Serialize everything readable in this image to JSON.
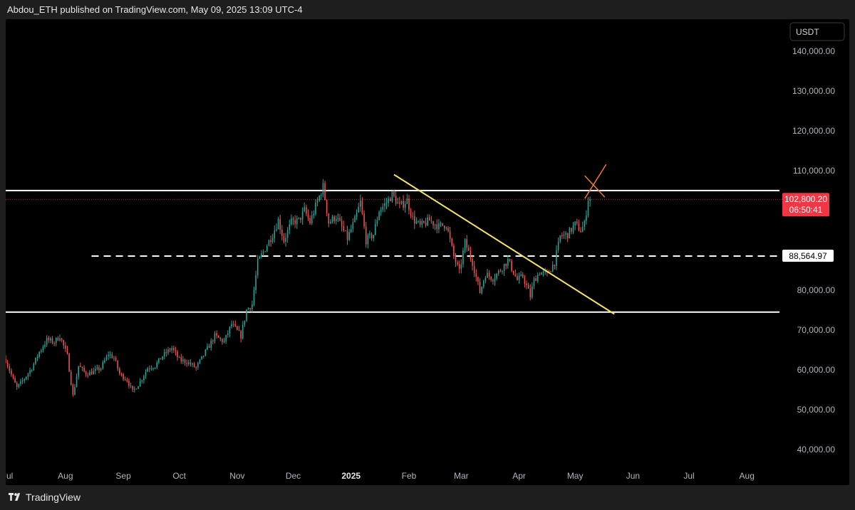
{
  "header": {
    "attribution": "Abdou_ETH published on TradingView.com, May 09, 2025 13:09 UTC-4"
  },
  "footer": {
    "brand": "TradingView"
  },
  "colors": {
    "up": "#26a69a",
    "down": "#ef5350",
    "background": "#000000",
    "trendline": "#f5e36a",
    "marker": "#f07a3a",
    "price_badge": "#f23645"
  },
  "chart_data": {
    "type": "candlestick",
    "currency_label": "USDT",
    "ylim": [
      35000,
      148000
    ],
    "y_ticks": [
      40000,
      50000,
      60000,
      70000,
      80000,
      90000,
      100000,
      110000,
      120000,
      130000,
      140000
    ],
    "y_tick_labels": [
      "40,000.00",
      "50,000.00",
      "60,000.00",
      "70,000.00",
      "80,000.00",
      "",
      "",
      "110,000.00",
      "120,000.00",
      "130,000.00",
      "140,000.00"
    ],
    "x_range": [
      "2024-06-30",
      "2025-08-20"
    ],
    "x_ticks": [
      {
        "label": "Jul",
        "date": "2024-07-01",
        "bold": false
      },
      {
        "label": "Aug",
        "date": "2024-08-01",
        "bold": false
      },
      {
        "label": "Sep",
        "date": "2024-09-01",
        "bold": false
      },
      {
        "label": "Oct",
        "date": "2024-10-01",
        "bold": false
      },
      {
        "label": "Nov",
        "date": "2024-11-01",
        "bold": false
      },
      {
        "label": "Dec",
        "date": "2024-12-01",
        "bold": false
      },
      {
        "label": "2025",
        "date": "2025-01-01",
        "bold": true
      },
      {
        "label": "Feb",
        "date": "2025-02-01",
        "bold": false
      },
      {
        "label": "Mar",
        "date": "2025-03-01",
        "bold": false
      },
      {
        "label": "Apr",
        "date": "2025-04-01",
        "bold": false
      },
      {
        "label": "May",
        "date": "2025-05-01",
        "bold": false
      },
      {
        "label": "Jun",
        "date": "2025-06-01",
        "bold": false
      },
      {
        "label": "Jul",
        "date": "2025-07-01",
        "bold": false
      },
      {
        "label": "Aug",
        "date": "2025-08-01",
        "bold": false
      }
    ],
    "price_path": [
      [
        "2024-06-30",
        62500
      ],
      [
        "2024-07-04",
        57500
      ],
      [
        "2024-07-06",
        55500
      ],
      [
        "2024-07-10",
        57800
      ],
      [
        "2024-07-14",
        60500
      ],
      [
        "2024-07-18",
        64500
      ],
      [
        "2024-07-22",
        67500
      ],
      [
        "2024-07-26",
        67000
      ],
      [
        "2024-07-29",
        68500
      ],
      [
        "2024-08-02",
        63500
      ],
      [
        "2024-08-05",
        53500
      ],
      [
        "2024-08-08",
        61000
      ],
      [
        "2024-08-12",
        59000
      ],
      [
        "2024-08-16",
        59500
      ],
      [
        "2024-08-20",
        60500
      ],
      [
        "2024-08-24",
        64000
      ],
      [
        "2024-08-27",
        63000
      ],
      [
        "2024-08-30",
        59000
      ],
      [
        "2024-09-03",
        57500
      ],
      [
        "2024-09-06",
        54500
      ],
      [
        "2024-09-10",
        57000
      ],
      [
        "2024-09-14",
        60500
      ],
      [
        "2024-09-18",
        61000
      ],
      [
        "2024-09-22",
        63500
      ],
      [
        "2024-09-27",
        65500
      ],
      [
        "2024-10-01",
        62500
      ],
      [
        "2024-10-05",
        62000
      ],
      [
        "2024-10-10",
        60500
      ],
      [
        "2024-10-15",
        64500
      ],
      [
        "2024-10-20",
        68500
      ],
      [
        "2024-10-25",
        67000
      ],
      [
        "2024-10-29",
        71500
      ],
      [
        "2024-11-03",
        68500
      ],
      [
        "2024-11-06",
        75000
      ],
      [
        "2024-11-09",
        76500
      ],
      [
        "2024-11-12",
        87000
      ],
      [
        "2024-11-16",
        90500
      ],
      [
        "2024-11-20",
        94000
      ],
      [
        "2024-11-23",
        97500
      ],
      [
        "2024-11-26",
        92500
      ],
      [
        "2024-11-30",
        97000
      ],
      [
        "2024-12-04",
        97500
      ],
      [
        "2024-12-07",
        100000
      ],
      [
        "2024-12-10",
        97000
      ],
      [
        "2024-12-13",
        101000
      ],
      [
        "2024-12-17",
        106000
      ],
      [
        "2024-12-20",
        97000
      ],
      [
        "2024-12-24",
        98500
      ],
      [
        "2024-12-30",
        93000
      ],
      [
        "2025-01-03",
        97500
      ],
      [
        "2025-01-06",
        102000
      ],
      [
        "2025-01-09",
        92500
      ],
      [
        "2025-01-13",
        94000
      ],
      [
        "2025-01-16",
        100000
      ],
      [
        "2025-01-20",
        102000
      ],
      [
        "2025-01-23",
        104000
      ],
      [
        "2025-01-27",
        101000
      ],
      [
        "2025-01-31",
        102500
      ],
      [
        "2025-02-03",
        98000
      ],
      [
        "2025-02-07",
        96000
      ],
      [
        "2025-02-12",
        97500
      ],
      [
        "2025-02-17",
        96000
      ],
      [
        "2025-02-21",
        96500
      ],
      [
        "2025-02-25",
        88500
      ],
      [
        "2025-02-28",
        84500
      ],
      [
        "2025-03-03",
        92000
      ],
      [
        "2025-03-07",
        87000
      ],
      [
        "2025-03-11",
        79500
      ],
      [
        "2025-03-14",
        84000
      ],
      [
        "2025-03-18",
        83000
      ],
      [
        "2025-03-21",
        84500
      ],
      [
        "2025-03-26",
        87500
      ],
      [
        "2025-03-31",
        82500
      ],
      [
        "2025-04-03",
        83500
      ],
      [
        "2025-04-07",
        78500
      ],
      [
        "2025-04-09",
        82500
      ],
      [
        "2025-04-12",
        84500
      ],
      [
        "2025-04-16",
        84000
      ],
      [
        "2025-04-20",
        87000
      ],
      [
        "2025-04-23",
        93500
      ],
      [
        "2025-04-27",
        94000
      ],
      [
        "2025-05-01",
        96500
      ],
      [
        "2025-05-04",
        95000
      ],
      [
        "2025-05-06",
        96500
      ],
      [
        "2025-05-08",
        103000
      ],
      [
        "2025-05-09",
        102800
      ]
    ],
    "levels": [
      {
        "name": "resistance",
        "value": 105000,
        "style": "solid"
      },
      {
        "name": "mid-level",
        "value": 88564.97,
        "style": "dashed",
        "label": "88,564.97",
        "from_date": "2024-08-15"
      },
      {
        "name": "support",
        "value": 74500,
        "style": "solid"
      }
    ],
    "trendline": {
      "start": [
        "2025-01-24",
        109000
      ],
      "end": [
        "2025-05-22",
        74000
      ]
    },
    "marker": {
      "date": "2025-05-10",
      "value": 106200
    },
    "last_price": {
      "value": 102800.2,
      "label": "102,800.20",
      "countdown": "06:50:41"
    }
  }
}
